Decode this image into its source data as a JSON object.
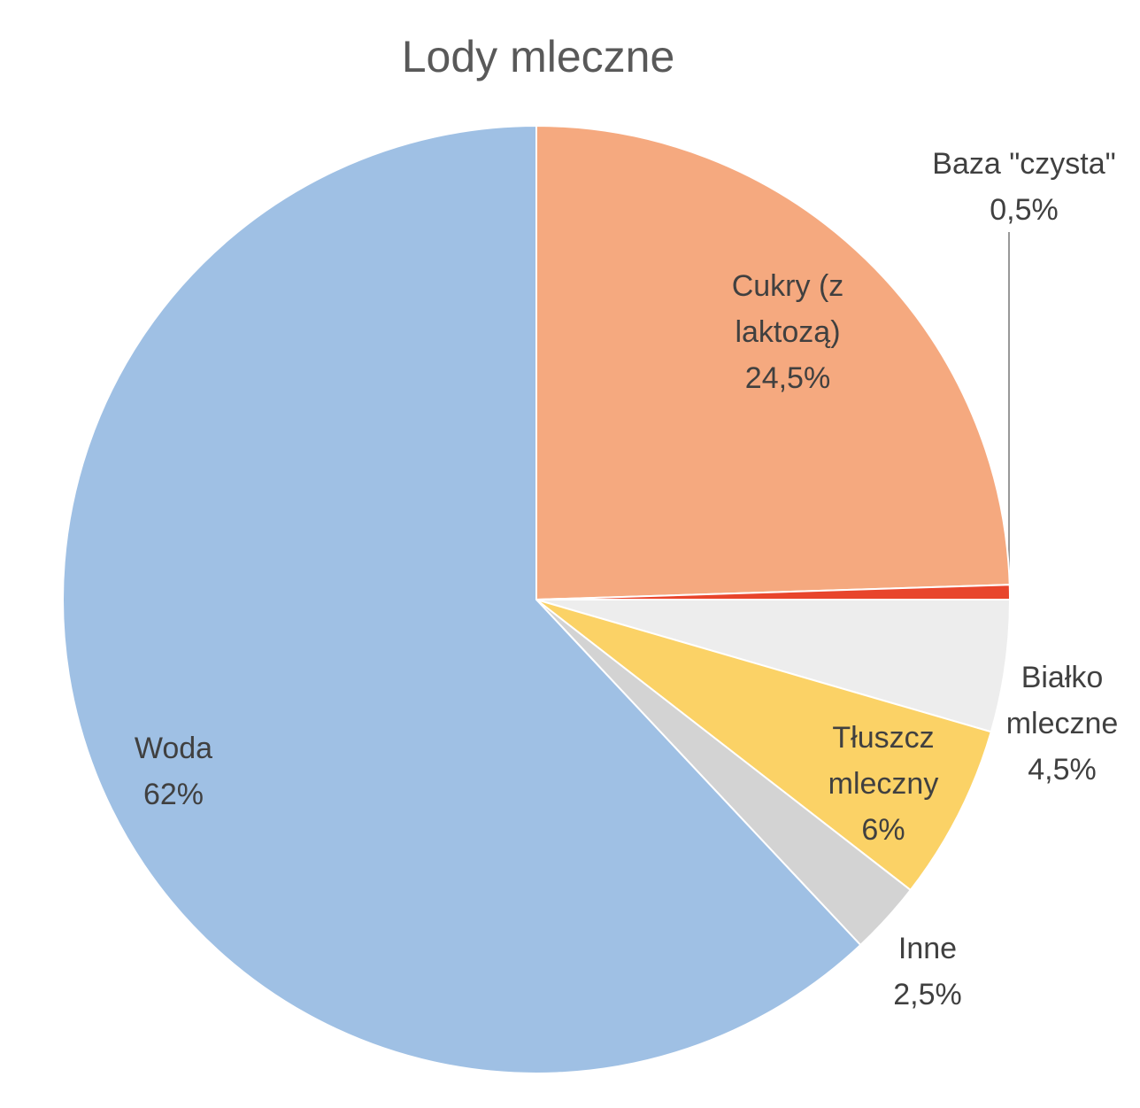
{
  "chart_data": {
    "type": "pie",
    "title": "Lody mleczne",
    "categories": [
      "Cukry (z laktozą)",
      "Baza \"czysta\"",
      "Białko mleczne",
      "Tłuszcz mleczny",
      "Inne",
      "Woda"
    ],
    "values": [
      24.5,
      0.5,
      4.5,
      6,
      2.5,
      62
    ],
    "value_labels": [
      "24,5%",
      "0,5%",
      "4,5%",
      "6%",
      "2,5%",
      "62%"
    ],
    "colors": [
      "#F5A97F",
      "#E8452C",
      "#EDEDED",
      "#FBD266",
      "#D3D3D3",
      "#9FC0E4"
    ]
  }
}
